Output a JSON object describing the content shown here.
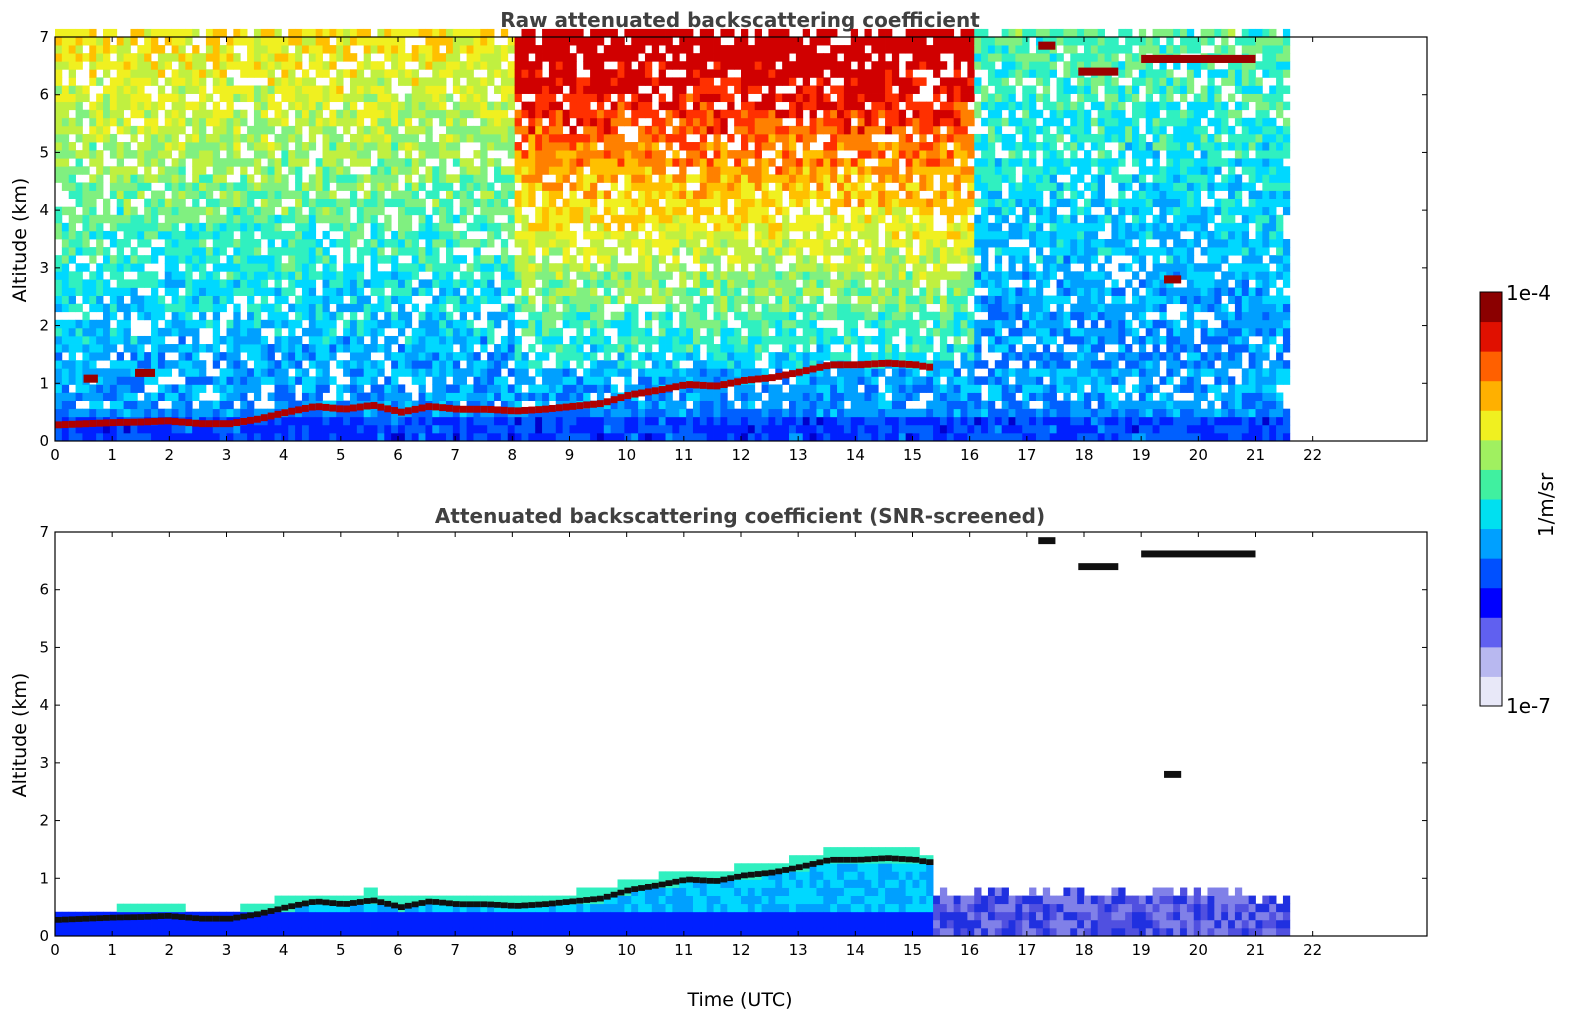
{
  "chart_data": [
    {
      "type": "heatmap",
      "title": "Raw attenuated backscattering coefficient",
      "xlabel": "",
      "ylabel": "Altitude (km)",
      "xlim": [
        0,
        24
      ],
      "ylim": [
        0,
        7
      ],
      "x_ticks": [
        "0",
        "1",
        "2",
        "3",
        "4",
        "5",
        "6",
        "7",
        "8",
        "9",
        "10",
        "11",
        "12",
        "13",
        "14",
        "15",
        "16",
        "17",
        "18",
        "19",
        "20",
        "21",
        "22"
      ],
      "y_ticks": [
        "0",
        "1",
        "2",
        "3",
        "4",
        "5",
        "6",
        "7"
      ],
      "data_end_time": 21.6,
      "boundary_layer_top_km": [
        [
          0.0,
          0.28
        ],
        [
          0.5,
          0.3
        ],
        [
          1.0,
          0.32
        ],
        [
          1.5,
          0.33
        ],
        [
          1.9,
          0.35
        ],
        [
          2.5,
          0.3
        ],
        [
          3.0,
          0.3
        ],
        [
          3.5,
          0.38
        ],
        [
          4.0,
          0.5
        ],
        [
          4.5,
          0.6
        ],
        [
          5.0,
          0.55
        ],
        [
          5.5,
          0.62
        ],
        [
          6.0,
          0.5
        ],
        [
          6.5,
          0.6
        ],
        [
          7.0,
          0.55
        ],
        [
          7.5,
          0.55
        ],
        [
          8.0,
          0.52
        ],
        [
          8.5,
          0.55
        ],
        [
          9.0,
          0.6
        ],
        [
          9.5,
          0.65
        ],
        [
          10.0,
          0.8
        ],
        [
          10.5,
          0.88
        ],
        [
          11.0,
          0.98
        ],
        [
          11.5,
          0.95
        ],
        [
          12.0,
          1.05
        ],
        [
          12.5,
          1.1
        ],
        [
          13.0,
          1.2
        ],
        [
          13.5,
          1.32
        ],
        [
          14.0,
          1.32
        ],
        [
          14.5,
          1.35
        ],
        [
          15.0,
          1.32
        ],
        [
          15.2,
          1.28
        ]
      ],
      "cloud_layers_km": [
        {
          "t_start": 0.5,
          "t_end": 0.75,
          "alt": 1.08
        },
        {
          "t_start": 1.4,
          "t_end": 1.75,
          "alt": 1.18
        },
        {
          "t_start": 17.9,
          "t_end": 18.6,
          "alt": 6.4
        },
        {
          "t_start": 19.0,
          "t_end": 21.0,
          "alt": 6.62
        },
        {
          "t_start": 19.4,
          "t_end": 19.7,
          "alt": 2.8
        },
        {
          "t_start": 17.2,
          "t_end": 17.5,
          "alt": 6.85
        }
      ]
    },
    {
      "type": "heatmap",
      "title": "Attenuated backscattering coefficient (SNR-screened)",
      "xlabel": "Time (UTC)",
      "ylabel": "Altitude (km)",
      "xlim": [
        0,
        24
      ],
      "ylim": [
        0,
        7
      ],
      "x_ticks": [
        "0",
        "1",
        "2",
        "3",
        "4",
        "5",
        "6",
        "7",
        "8",
        "9",
        "10",
        "11",
        "12",
        "13",
        "14",
        "15",
        "16",
        "17",
        "18",
        "19",
        "20",
        "21",
        "22"
      ],
      "y_ticks": [
        "0",
        "1",
        "2",
        "3",
        "4",
        "5",
        "6",
        "7"
      ],
      "data_end_time": 21.6
    }
  ],
  "colorbar": {
    "label": "1/m/sr",
    "max_label": "1e-4",
    "min_label": "1e-7",
    "scale": "log",
    "colormap": "jet",
    "colors": [
      "#e8e8f8",
      "#b8b8f0",
      "#6060f0",
      "#0000ff",
      "#0050ff",
      "#00a0ff",
      "#00e0f0",
      "#40f0a0",
      "#a0f060",
      "#f0f020",
      "#ffb000",
      "#ff6000",
      "#e01000",
      "#8b0000"
    ]
  }
}
